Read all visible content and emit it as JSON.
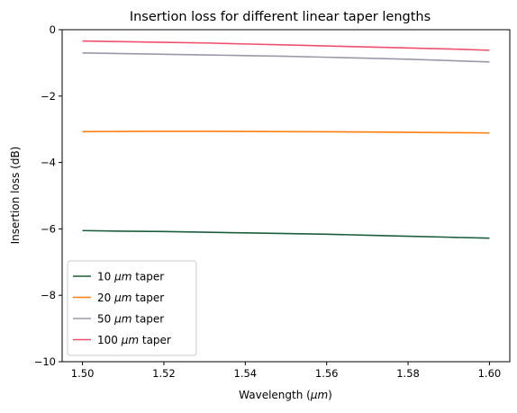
{
  "chart_data": {
    "type": "line",
    "title": "Insertion loss for different linear taper lengths",
    "xlabel": "Wavelength (",
    "xlabel_unit": "μm",
    "xlabel_close": ")",
    "ylabel": "Insertion loss (dB)",
    "xlim": [
      1.495,
      1.605
    ],
    "ylim": [
      -10,
      0
    ],
    "xticks": [
      1.5,
      1.52,
      1.54,
      1.56,
      1.58,
      1.6
    ],
    "xtick_labels": [
      "1.50",
      "1.52",
      "1.54",
      "1.56",
      "1.58",
      "1.60"
    ],
    "yticks": [
      -10,
      -8,
      -6,
      -4,
      -2,
      0
    ],
    "ytick_labels": [
      "−10",
      "−8",
      "−6",
      "−4",
      "−2",
      "0"
    ],
    "grid": false,
    "legend_position": "lower-left",
    "x": [
      1.5,
      1.51,
      1.52,
      1.53,
      1.54,
      1.55,
      1.56,
      1.57,
      1.58,
      1.59,
      1.6
    ],
    "series": [
      {
        "name_prefix": "10 ",
        "name_unit": "μm",
        "name_suffix": " taper",
        "color": "#1b5e3b",
        "values": [
          -6.05,
          -6.07,
          -6.08,
          -6.1,
          -6.12,
          -6.14,
          -6.16,
          -6.19,
          -6.22,
          -6.25,
          -6.28
        ]
      },
      {
        "name_prefix": "20 ",
        "name_unit": "μm",
        "name_suffix": " taper",
        "color": "#ff7f0e",
        "values": [
          -3.07,
          -3.065,
          -3.06,
          -3.06,
          -3.065,
          -3.07,
          -3.075,
          -3.08,
          -3.09,
          -3.1,
          -3.11
        ]
      },
      {
        "name_prefix": "50 ",
        "name_unit": "μm",
        "name_suffix": " taper",
        "color": "#9c98aa",
        "values": [
          -0.7,
          -0.72,
          -0.74,
          -0.76,
          -0.78,
          -0.8,
          -0.83,
          -0.86,
          -0.89,
          -0.93,
          -0.97
        ]
      },
      {
        "name_prefix": "100 ",
        "name_unit": "μm",
        "name_suffix": " taper",
        "color": "#f0506e",
        "values": [
          -0.34,
          -0.36,
          -0.38,
          -0.4,
          -0.43,
          -0.46,
          -0.49,
          -0.52,
          -0.55,
          -0.58,
          -0.62
        ]
      }
    ]
  }
}
